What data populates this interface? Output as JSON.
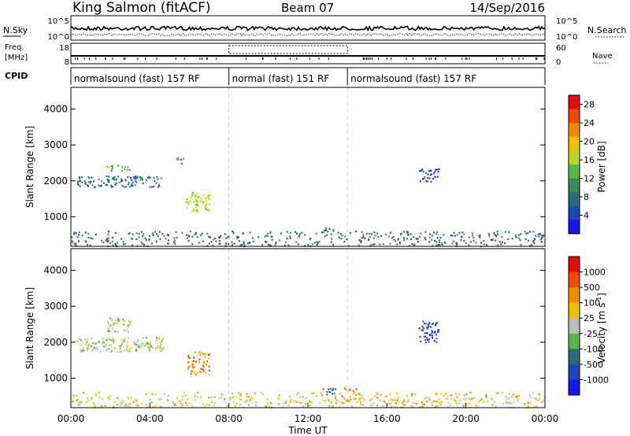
{
  "header": {
    "title": "King Salmon (fitACF)",
    "beam": "Beam 07",
    "date": "14/Sep/2016"
  },
  "noise_panel": {
    "left_label": "N.Sky",
    "right_label": "N.Search",
    "left_ticks": [
      "10^5",
      "10^0"
    ],
    "right_ticks": [
      "10^5",
      "10^0"
    ]
  },
  "freq_panel": {
    "left_label_top": "Freq.",
    "left_label_unit": "[MHz]",
    "right_label": "Nave",
    "left_ticks": [
      "18",
      "8"
    ],
    "right_ticks": [
      "60",
      "0"
    ]
  },
  "cpid": {
    "label": "CPID",
    "segments": [
      {
        "start": 0,
        "end": 8,
        "text": "normalsound (fast) 157 RF"
      },
      {
        "start": 8,
        "end": 14,
        "text": "normal (fast) 151 RF"
      },
      {
        "start": 14,
        "end": 24,
        "text": "normalsound (fast) 157 RF"
      }
    ]
  },
  "x_axis": {
    "label": "Time UT",
    "ticks": [
      "00:00",
      "04:00",
      "08:00",
      "12:00",
      "16:00",
      "20:00",
      "00:00"
    ]
  },
  "colors": {
    "power_scale": [
      "#1818e8",
      "#1f48b8",
      "#2d6a7a",
      "#3a8a5a",
      "#58b848",
      "#b8d820",
      "#f0c000",
      "#f08a00",
      "#f04a00",
      "#e01010"
    ],
    "velocity_scale": [
      "#1818e8",
      "#1f48b8",
      "#2d6a7a",
      "#58b848",
      "#bcbcbc",
      "#f0c000",
      "#f08a00",
      "#f04a00",
      "#e01010"
    ]
  },
  "chart_data": [
    {
      "type": "heatmap",
      "name": "power",
      "ylabel": "Slant Range [km]",
      "ylim": [
        180,
        4600
      ],
      "xlim": [
        0,
        24
      ],
      "yticks": [
        1000,
        2000,
        3000,
        4000
      ],
      "colorbar": {
        "label": "Power [dB]",
        "ticks": [
          4,
          8,
          12,
          16,
          20,
          24,
          28
        ],
        "range": [
          0,
          30
        ]
      },
      "features": [
        {
          "x_start": 0.3,
          "x_end": 4.7,
          "y_start": 1850,
          "y_end": 2150,
          "value_level": 2
        },
        {
          "x_start": 1.8,
          "x_end": 3.0,
          "y_start": 2300,
          "y_end": 2450,
          "value_level": 4
        },
        {
          "x_start": 5.8,
          "x_end": 7.0,
          "y_start": 1150,
          "y_end": 1700,
          "value_level": 5
        },
        {
          "x_start": 5.3,
          "x_end": 5.7,
          "y_start": 2500,
          "y_end": 2700,
          "value_level": 3
        },
        {
          "x_start": 12.8,
          "x_end": 13.3,
          "y_start": 550,
          "y_end": 720,
          "value_level": 2
        },
        {
          "x_start": 17.6,
          "x_end": 18.6,
          "y_start": 2000,
          "y_end": 2350,
          "value_level": 1
        },
        {
          "x_start": 0.0,
          "x_end": 24.0,
          "y_start": 200,
          "y_end": 620,
          "value_level": 2
        }
      ]
    },
    {
      "type": "heatmap",
      "name": "velocity",
      "ylabel": "Slant Range [km]",
      "ylim": [
        180,
        4600
      ],
      "xlim": [
        0,
        24
      ],
      "yticks": [
        1000,
        2000,
        3000,
        4000
      ],
      "colorbar": {
        "label": "Velocity [m s",
        "label_sup": "-1",
        "label_end": "]",
        "ticks": [
          "1000",
          "500",
          "100",
          "25",
          "-25",
          "-100",
          "-500",
          "-1000"
        ]
      },
      "features": [
        {
          "x_start": 0.3,
          "x_end": 4.7,
          "y_start": 1750,
          "y_end": 2150,
          "value_level": 4
        },
        {
          "x_start": 1.8,
          "x_end": 3.0,
          "y_start": 2300,
          "y_end": 2700,
          "value_level": 4
        },
        {
          "x_start": 5.9,
          "x_end": 7.0,
          "y_start": 1100,
          "y_end": 1750,
          "value_level": 6
        },
        {
          "x_start": 12.7,
          "x_end": 13.4,
          "y_start": 550,
          "y_end": 750,
          "value_level": 2
        },
        {
          "x_start": 13.8,
          "x_end": 14.5,
          "y_start": 650,
          "y_end": 750,
          "value_level": 6
        },
        {
          "x_start": 17.6,
          "x_end": 18.6,
          "y_start": 2000,
          "y_end": 2600,
          "value_level": 1
        },
        {
          "x_start": 0.0,
          "x_end": 24.0,
          "y_start": 200,
          "y_end": 620,
          "value_level": 5
        }
      ]
    }
  ]
}
